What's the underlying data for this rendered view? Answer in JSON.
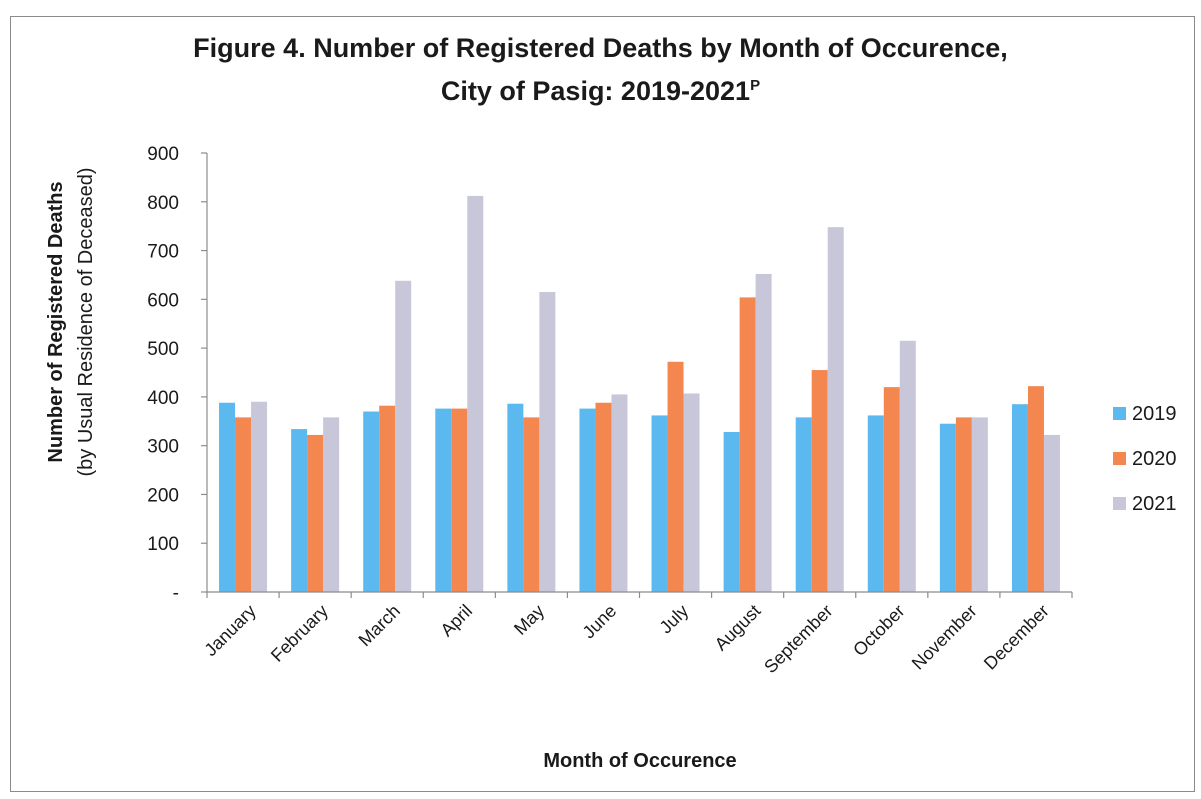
{
  "chart_data": {
    "type": "bar",
    "title_line1": "Figure 4. Number of Registered Deaths by Month of Occurence,",
    "title_line2": "City of Pasig: 2019-2021",
    "title_superscript": "P",
    "xlabel": "Month of Occurence",
    "ylabel_line1": "Number of Registered Deaths",
    "ylabel_line2": "(by Usual Residence of Deceased)",
    "ylim": [
      0,
      900
    ],
    "yticks": [
      0,
      100,
      200,
      300,
      400,
      500,
      600,
      700,
      800,
      900
    ],
    "ytick_labels": [
      "-",
      "100",
      "200",
      "300",
      "400",
      "500",
      "600",
      "700",
      "800",
      "900"
    ],
    "legend_position": "right",
    "grid": false,
    "categories": [
      "January",
      "February",
      "March",
      "April",
      "May",
      "June",
      "July",
      "August",
      "September",
      "October",
      "November",
      "December"
    ],
    "series": [
      {
        "name": "2019",
        "color": "#5bb9ef",
        "values": [
          388,
          334,
          370,
          376,
          386,
          376,
          362,
          328,
          358,
          362,
          345,
          385
        ]
      },
      {
        "name": "2020",
        "color": "#f4874f",
        "values": [
          358,
          322,
          382,
          376,
          358,
          388,
          472,
          604,
          455,
          420,
          358,
          422
        ]
      },
      {
        "name": "2021",
        "color": "#c8c7d9",
        "values": [
          390,
          358,
          638,
          812,
          615,
          405,
          407,
          652,
          748,
          515,
          358,
          322
        ]
      }
    ]
  }
}
